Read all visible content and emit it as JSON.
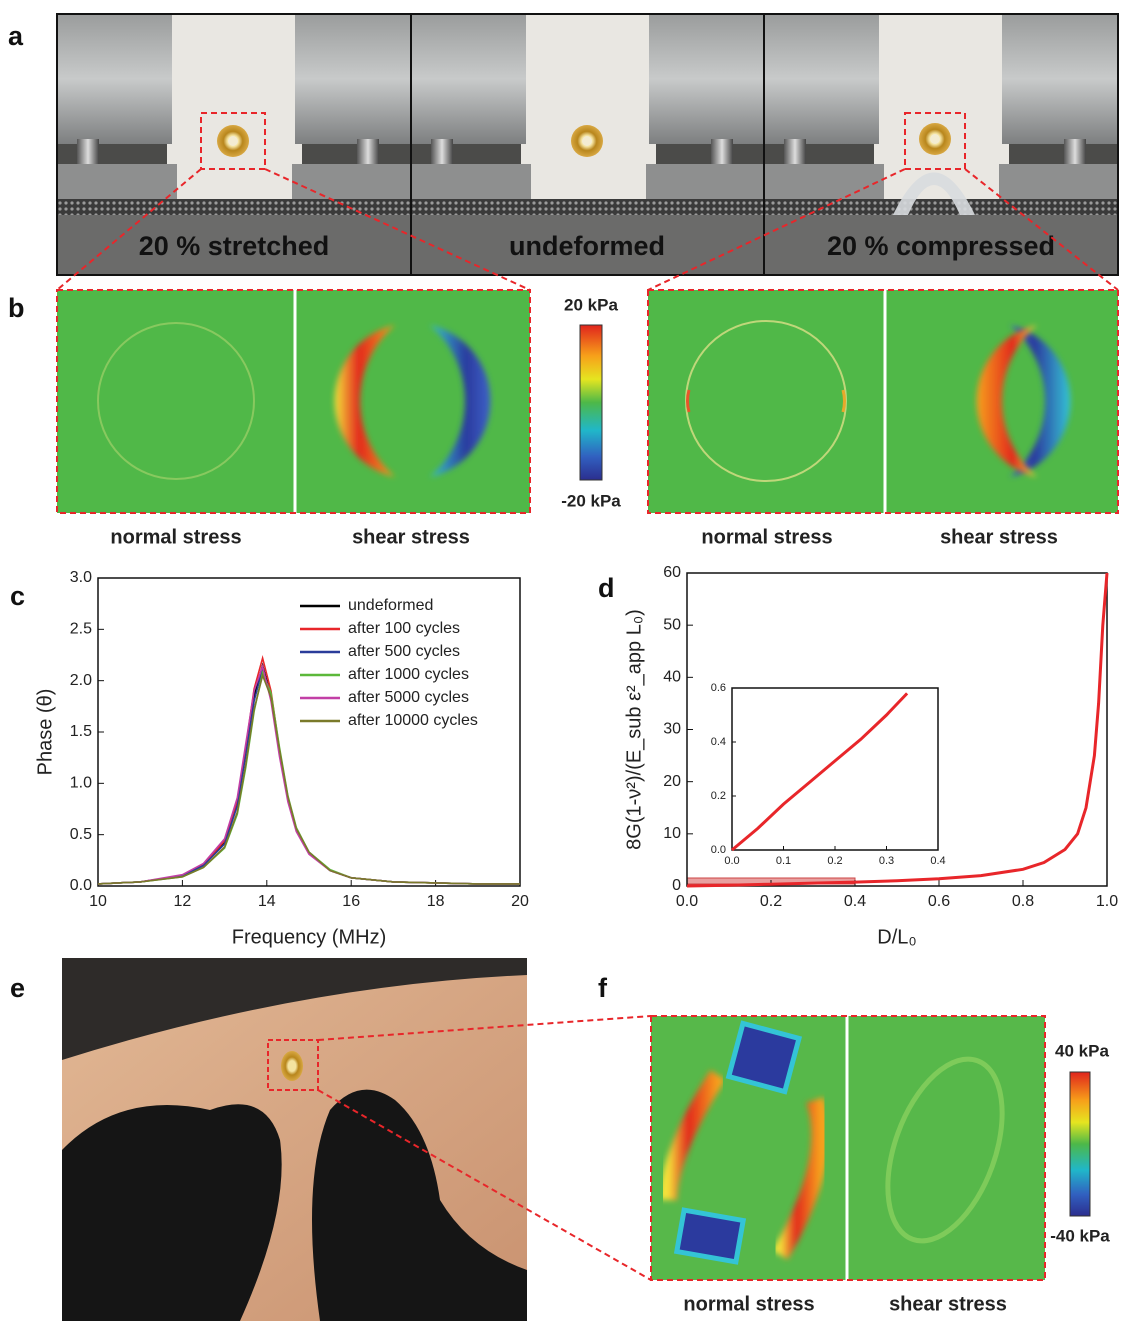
{
  "panel_labels": [
    "a",
    "b",
    "c",
    "d",
    "e",
    "f"
  ],
  "panel_a": {
    "captions": [
      "20 % stretched",
      "undeformed",
      "20 % compressed"
    ]
  },
  "panel_b": {
    "colorbar": {
      "max_label": "20 kPa",
      "min_label": "-20 kPa"
    },
    "captions": [
      "normal stress",
      "shear stress",
      "normal stress",
      "shear stress"
    ]
  },
  "panel_f": {
    "colorbar": {
      "max_label": "40 kPa",
      "min_label": "-40 kPa"
    },
    "captions": [
      "normal stress",
      "shear stress"
    ]
  },
  "chart_data": [
    {
      "type": "line",
      "xlabel": "Frequency (MHz)",
      "ylabel": "Phase (θ)",
      "legend": "upper right",
      "x": [
        10,
        11,
        12,
        12.5,
        13,
        13.3,
        13.5,
        13.7,
        13.9,
        14.1,
        14.3,
        14.5,
        14.7,
        15,
        15.5,
        16,
        17,
        18,
        19,
        20
      ],
      "series": [
        {
          "name": "undeformed",
          "color": "#000000",
          "values": [
            0.02,
            0.04,
            0.1,
            0.2,
            0.42,
            0.8,
            1.3,
            1.85,
            2.15,
            1.85,
            1.3,
            0.85,
            0.55,
            0.32,
            0.15,
            0.08,
            0.04,
            0.03,
            0.02,
            0.02
          ]
        },
        {
          "name": "after 100 cycles",
          "color": "#e8262a",
          "values": [
            0.02,
            0.04,
            0.1,
            0.21,
            0.44,
            0.83,
            1.35,
            1.92,
            2.22,
            1.9,
            1.33,
            0.86,
            0.55,
            0.32,
            0.15,
            0.08,
            0.04,
            0.03,
            0.02,
            0.02
          ]
        },
        {
          "name": "after 500 cycles",
          "color": "#2a3c9a",
          "values": [
            0.02,
            0.04,
            0.1,
            0.2,
            0.41,
            0.78,
            1.27,
            1.8,
            2.12,
            1.84,
            1.3,
            0.86,
            0.56,
            0.33,
            0.15,
            0.08,
            0.04,
            0.03,
            0.02,
            0.02
          ]
        },
        {
          "name": "after 1000 cycles",
          "color": "#5cb83a",
          "values": [
            0.02,
            0.04,
            0.09,
            0.18,
            0.37,
            0.7,
            1.15,
            1.7,
            2.08,
            1.88,
            1.35,
            0.88,
            0.57,
            0.33,
            0.16,
            0.08,
            0.04,
            0.03,
            0.02,
            0.02
          ]
        },
        {
          "name": "after 5000 cycles",
          "color": "#c23fa6",
          "values": [
            0.02,
            0.04,
            0.11,
            0.22,
            0.46,
            0.86,
            1.38,
            1.9,
            2.14,
            1.8,
            1.26,
            0.82,
            0.53,
            0.31,
            0.15,
            0.08,
            0.04,
            0.03,
            0.02,
            0.02
          ]
        },
        {
          "name": "after 10000 cycles",
          "color": "#7a7a2a",
          "values": [
            0.02,
            0.04,
            0.09,
            0.18,
            0.38,
            0.72,
            1.18,
            1.72,
            2.05,
            1.84,
            1.33,
            0.87,
            0.56,
            0.33,
            0.15,
            0.08,
            0.04,
            0.03,
            0.02,
            0.02
          ]
        }
      ],
      "xlim": [
        10,
        20
      ],
      "xticks": [
        10,
        12,
        14,
        16,
        18,
        20
      ],
      "ylim": [
        0,
        3
      ],
      "yticks": [
        {
          "value": 0,
          "label": "0.0"
        },
        {
          "value": 0.5,
          "label": "0.5"
        },
        {
          "value": 1,
          "label": "1.0"
        },
        {
          "value": 1.5,
          "label": "1.5"
        },
        {
          "value": 2,
          "label": "2.0"
        },
        {
          "value": 2.5,
          "label": "2.5"
        },
        {
          "value": 3,
          "label": "3.0"
        }
      ]
    },
    {
      "type": "line",
      "xlabel": "D/L₀",
      "ylabel": "8G(1-ν²)/(E_sub ε²_app L₀)",
      "x": [
        0,
        0.1,
        0.2,
        0.3,
        0.4,
        0.5,
        0.6,
        0.7,
        0.8,
        0.85,
        0.9,
        0.93,
        0.95,
        0.97,
        0.98,
        0.99,
        1.0
      ],
      "series": [
        {
          "color": "#e8262a",
          "values": [
            0,
            0.15,
            0.35,
            0.55,
            0.75,
            1.0,
            1.4,
            2.0,
            3.2,
            4.5,
            7,
            10,
            15,
            25,
            35,
            50,
            60
          ]
        }
      ],
      "xlim": [
        0,
        1
      ],
      "xticks": [
        {
          "value": 0,
          "label": "0.0"
        },
        {
          "value": 0.2,
          "label": "0.2"
        },
        {
          "value": 0.4,
          "label": "0.4"
        },
        {
          "value": 0.6,
          "label": "0.6"
        },
        {
          "value": 0.8,
          "label": "0.8"
        },
        {
          "value": 1,
          "label": "1.0"
        }
      ],
      "ylim": [
        0,
        60
      ],
      "yticks": [
        0,
        10,
        20,
        30,
        40,
        50,
        60
      ]
    },
    {
      "type": "line",
      "x": [
        0,
        0.05,
        0.1,
        0.15,
        0.2,
        0.25,
        0.3,
        0.34
      ],
      "series": [
        {
          "color": "#e8262a",
          "values": [
            0,
            0.08,
            0.17,
            0.25,
            0.33,
            0.41,
            0.5,
            0.58
          ]
        }
      ],
      "xlim": [
        0,
        0.4
      ],
      "xticks": [
        {
          "value": 0,
          "label": "0.0"
        },
        {
          "value": 0.1,
          "label": "0.1"
        },
        {
          "value": 0.2,
          "label": "0.2"
        },
        {
          "value": 0.3,
          "label": "0.3"
        },
        {
          "value": 0.4,
          "label": "0.4"
        }
      ],
      "ylim": [
        0,
        0.6
      ],
      "yticks": [
        {
          "value": 0,
          "label": "0.0"
        },
        {
          "value": 0.2,
          "label": "0.2"
        },
        {
          "value": 0.4,
          "label": "0.4"
        },
        {
          "value": 0.6,
          "label": "0.6"
        }
      ]
    }
  ]
}
